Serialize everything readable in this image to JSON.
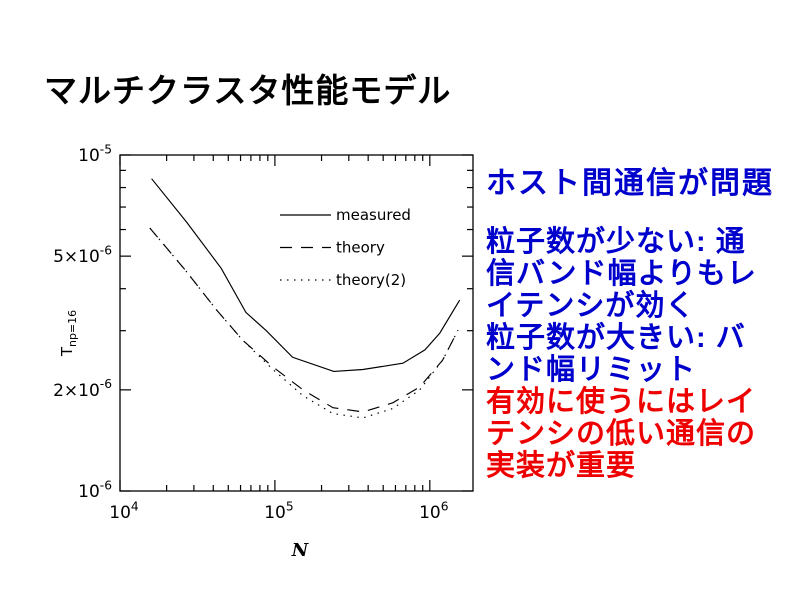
{
  "slide": {
    "title": "マルチクラスタ性能モデル",
    "notes": {
      "heading": "ホスト間通信が問題",
      "heading_color": "#0000cc",
      "blue_color": "#0000cc",
      "red_color": "#ee0000",
      "blue_lines": [
        "粒子数が少ない: 通",
        "信バンド幅よりもレ",
        "イテンシが効く",
        "粒子数が大きい: バ",
        "ンド幅リミット"
      ],
      "red_lines": [
        "有効に使うにはレイ",
        "テンシの低い通信の",
        "実装が重要"
      ]
    }
  },
  "chart_data": {
    "type": "line",
    "line_color": "#000000",
    "x_axis": {
      "label": "N",
      "scale": "log",
      "min": 10000,
      "max": 1900000,
      "tick_values": [
        10000,
        100000,
        1000000
      ],
      "tick_labels": [
        "10^4",
        "10^5",
        "10^6"
      ]
    },
    "y_axis": {
      "label_main": "T",
      "label_sub": "np=16",
      "scale": "log",
      "min": 1e-06,
      "max": 1e-05,
      "tick_values": [
        1e-05,
        5e-06,
        2e-06,
        1e-06
      ],
      "tick_labels": [
        "10^-5",
        "5×10^-6",
        "2×10^-6",
        "10^-6"
      ],
      "minor_mantissas": [
        3,
        4,
        6,
        7,
        8,
        9
      ]
    },
    "series": [
      {
        "name": "measured",
        "style": "solid",
        "x": [
          16000,
          27000,
          45000,
          65000,
          88000,
          130000,
          240000,
          370000,
          670000,
          930000,
          1160000,
          1560000
        ],
        "y": [
          8.5e-06,
          6.3e-06,
          4.6e-06,
          3.4e-06,
          3e-06,
          2.5e-06,
          2.27e-06,
          2.3e-06,
          2.4e-06,
          2.63e-06,
          2.95e-06,
          3.7e-06
        ]
      },
      {
        "name": "theory",
        "style": "dashed",
        "x": [
          15600,
          26300,
          42000,
          62000,
          97000,
          152000,
          237000,
          370000,
          577000,
          861000,
          1210000,
          1520000
        ],
        "y": [
          6.06e-06,
          4.55e-06,
          3.46e-06,
          2.81e-06,
          2.34e-06,
          2e-06,
          1.77e-06,
          1.72e-06,
          1.83e-06,
          2.04e-06,
          2.45e-06,
          3.01e-06
        ]
      },
      {
        "name": "theory(2)",
        "style": "dotted",
        "x": [
          15600,
          26300,
          42000,
          62000,
          97000,
          152000,
          237000,
          370000,
          577000,
          861000,
          1210000,
          1520000
        ],
        "y": [
          6.06e-06,
          4.55e-06,
          3.46e-06,
          2.81e-06,
          2.3e-06,
          1.92e-06,
          1.7e-06,
          1.65e-06,
          1.76e-06,
          2e-06,
          2.45e-06,
          3.01e-06
        ]
      }
    ],
    "legend": [
      {
        "label": "measured",
        "style": "solid"
      },
      {
        "label": "theory",
        "style": "dashed"
      },
      {
        "label": "theory(2)",
        "style": "dotted"
      }
    ],
    "legend_position": "inside-top-right",
    "grid": false
  }
}
